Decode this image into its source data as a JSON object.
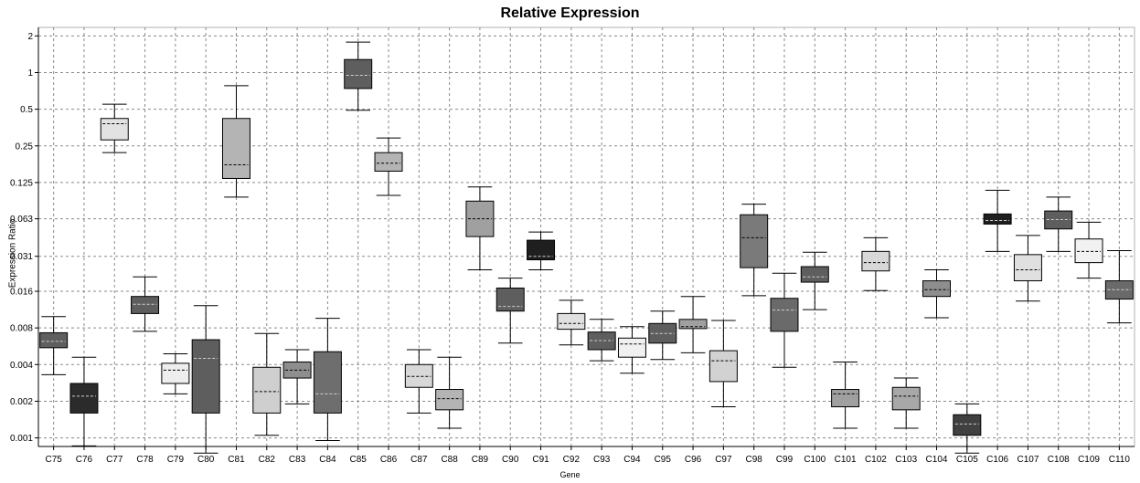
{
  "chart_data": {
    "type": "box",
    "title": "Relative Expression",
    "xlabel": "Gene",
    "ylabel": "Expression Ratio",
    "yscale": "log2",
    "ylim": [
      0.00085,
      2.35
    ],
    "yticks": [
      {
        "value": 0.001,
        "label": "0.001"
      },
      {
        "value": 0.002,
        "label": "0.002"
      },
      {
        "value": 0.004,
        "label": "0.004"
      },
      {
        "value": 0.008,
        "label": "0.008"
      },
      {
        "value": 0.016,
        "label": "0.016"
      },
      {
        "value": 0.031,
        "label": "0.031"
      },
      {
        "value": 0.063,
        "label": "0.063"
      },
      {
        "value": 0.125,
        "label": "0.125"
      },
      {
        "value": 0.25,
        "label": "0.25"
      },
      {
        "value": 0.5,
        "label": "0.5"
      },
      {
        "value": 1,
        "label": "1"
      },
      {
        "value": 2,
        "label": "2"
      }
    ],
    "grid": true,
    "legend": "none",
    "boxes": [
      {
        "category": "C75",
        "whisker_low": 0.0033,
        "q1": 0.0055,
        "median": 0.0062,
        "q3": 0.0073,
        "whisker_high": 0.0099,
        "color": "#5e5e5e"
      },
      {
        "category": "C76",
        "whisker_low": 0.00086,
        "q1": 0.0016,
        "median": 0.0022,
        "q3": 0.0028,
        "whisker_high": 0.0046,
        "color": "#2b2b2b"
      },
      {
        "category": "C77",
        "whisker_low": 0.22,
        "q1": 0.28,
        "median": 0.38,
        "q3": 0.42,
        "whisker_high": 0.55,
        "color": "#e2e2e2"
      },
      {
        "category": "C78",
        "whisker_low": 0.0075,
        "q1": 0.0105,
        "median": 0.0125,
        "q3": 0.0145,
        "whisker_high": 0.021,
        "color": "#5e5e5e"
      },
      {
        "category": "C79",
        "whisker_low": 0.0023,
        "q1": 0.0028,
        "median": 0.0036,
        "q3": 0.0041,
        "whisker_high": 0.0049,
        "color": "#eeeeee"
      },
      {
        "category": "C80",
        "whisker_low": 0.00075,
        "q1": 0.0016,
        "median": 0.0045,
        "q3": 0.0064,
        "whisker_high": 0.0122,
        "color": "#5e5e5e"
      },
      {
        "category": "C81",
        "whisker_low": 0.095,
        "q1": 0.135,
        "median": 0.175,
        "q3": 0.42,
        "whisker_high": 0.78,
        "color": "#b4b4b4"
      },
      {
        "category": "C82",
        "whisker_low": 0.00105,
        "q1": 0.0016,
        "median": 0.0024,
        "q3": 0.0038,
        "whisker_high": 0.0072,
        "color": "#cfcfcf"
      },
      {
        "category": "C83",
        "whisker_low": 0.0019,
        "q1": 0.0031,
        "median": 0.0036,
        "q3": 0.0042,
        "whisker_high": 0.0053,
        "color": "#8e8e8e"
      },
      {
        "category": "C84",
        "whisker_low": 0.00095,
        "q1": 0.0016,
        "median": 0.0023,
        "q3": 0.0051,
        "whisker_high": 0.0096,
        "color": "#6e6e6e"
      },
      {
        "category": "C85",
        "whisker_low": 0.49,
        "q1": 0.74,
        "median": 0.95,
        "q3": 1.28,
        "whisker_high": 1.78,
        "color": "#5e5e5e"
      },
      {
        "category": "C86",
        "whisker_low": 0.098,
        "q1": 0.155,
        "median": 0.18,
        "q3": 0.22,
        "whisker_high": 0.29,
        "color": "#b4b4b4"
      },
      {
        "category": "C87",
        "whisker_low": 0.0016,
        "q1": 0.0026,
        "median": 0.0032,
        "q3": 0.004,
        "whisker_high": 0.0053,
        "color": "#d8d8d8"
      },
      {
        "category": "C88",
        "whisker_low": 0.0012,
        "q1": 0.0017,
        "median": 0.0021,
        "q3": 0.0025,
        "whisker_high": 0.0046,
        "color": "#b4b4b4"
      },
      {
        "category": "C89",
        "whisker_low": 0.024,
        "q1": 0.045,
        "median": 0.063,
        "q3": 0.088,
        "whisker_high": 0.115,
        "color": "#a0a0a0"
      },
      {
        "category": "C90",
        "whisker_low": 0.006,
        "q1": 0.011,
        "median": 0.012,
        "q3": 0.017,
        "whisker_high": 0.0205,
        "color": "#5e5e5e"
      },
      {
        "category": "C91",
        "whisker_low": 0.024,
        "q1": 0.029,
        "median": 0.031,
        "q3": 0.042,
        "whisker_high": 0.049,
        "color": "#1f1f1f"
      },
      {
        "category": "C92",
        "whisker_low": 0.0058,
        "q1": 0.0078,
        "median": 0.0087,
        "q3": 0.0105,
        "whisker_high": 0.0135,
        "color": "#e0e0e0"
      },
      {
        "category": "C93",
        "whisker_low": 0.0043,
        "q1": 0.0053,
        "median": 0.0063,
        "q3": 0.0074,
        "whisker_high": 0.0094,
        "color": "#5e5e5e"
      },
      {
        "category": "C94",
        "whisker_low": 0.0034,
        "q1": 0.0046,
        "median": 0.0059,
        "q3": 0.0066,
        "whisker_high": 0.0082,
        "color": "#f0f0f0"
      },
      {
        "category": "C95",
        "whisker_low": 0.0044,
        "q1": 0.006,
        "median": 0.0072,
        "q3": 0.0087,
        "whisker_high": 0.011,
        "color": "#5e5e5e"
      },
      {
        "category": "C96",
        "whisker_low": 0.005,
        "q1": 0.0079,
        "median": 0.0082,
        "q3": 0.0094,
        "whisker_high": 0.0145,
        "color": "#a0a0a0"
      },
      {
        "category": "C97",
        "whisker_low": 0.0018,
        "q1": 0.0029,
        "median": 0.0043,
        "q3": 0.0052,
        "whisker_high": 0.0092,
        "color": "#d2d2d2"
      },
      {
        "category": "C98",
        "whisker_low": 0.0147,
        "q1": 0.025,
        "median": 0.044,
        "q3": 0.068,
        "whisker_high": 0.083,
        "color": "#7a7a7a"
      },
      {
        "category": "C99",
        "whisker_low": 0.0038,
        "q1": 0.0075,
        "median": 0.0112,
        "q3": 0.014,
        "whisker_high": 0.0225,
        "color": "#6a6a6a"
      },
      {
        "category": "C100",
        "whisker_low": 0.0113,
        "q1": 0.019,
        "median": 0.021,
        "q3": 0.0255,
        "whisker_high": 0.0335,
        "color": "#5e5e5e"
      },
      {
        "category": "C101",
        "whisker_low": 0.0012,
        "q1": 0.0018,
        "median": 0.0023,
        "q3": 0.0025,
        "whisker_high": 0.0042,
        "color": "#a0a0a0"
      },
      {
        "category": "C102",
        "whisker_low": 0.0162,
        "q1": 0.0235,
        "median": 0.0275,
        "q3": 0.034,
        "whisker_high": 0.044,
        "color": "#d8d8d8"
      },
      {
        "category": "C103",
        "whisker_low": 0.0012,
        "q1": 0.0017,
        "median": 0.0022,
        "q3": 0.0026,
        "whisker_high": 0.0031,
        "color": "#a8a8a8"
      },
      {
        "category": "C104",
        "whisker_low": 0.0097,
        "q1": 0.0145,
        "median": 0.0165,
        "q3": 0.0195,
        "whisker_high": 0.024,
        "color": "#8e8e8e"
      },
      {
        "category": "C105",
        "whisker_low": 0.00075,
        "q1": 0.00105,
        "median": 0.0013,
        "q3": 0.00155,
        "whisker_high": 0.0019,
        "color": "#404040"
      },
      {
        "category": "C106",
        "whisker_low": 0.034,
        "q1": 0.057,
        "median": 0.061,
        "q3": 0.069,
        "whisker_high": 0.108,
        "color": "#1f1f1f"
      },
      {
        "category": "C107",
        "whisker_low": 0.0133,
        "q1": 0.0195,
        "median": 0.024,
        "q3": 0.032,
        "whisker_high": 0.046,
        "color": "#e0e0e0"
      },
      {
        "category": "C108",
        "whisker_low": 0.034,
        "q1": 0.052,
        "median": 0.062,
        "q3": 0.073,
        "whisker_high": 0.095,
        "color": "#5e5e5e"
      },
      {
        "category": "C109",
        "whisker_low": 0.0205,
        "q1": 0.0275,
        "median": 0.034,
        "q3": 0.043,
        "whisker_high": 0.059,
        "color": "#f2f2f2"
      },
      {
        "category": "C110",
        "whisker_low": 0.0088,
        "q1": 0.0138,
        "median": 0.0165,
        "q3": 0.0195,
        "whisker_high": 0.0345,
        "color": "#6a6a6a"
      }
    ]
  }
}
